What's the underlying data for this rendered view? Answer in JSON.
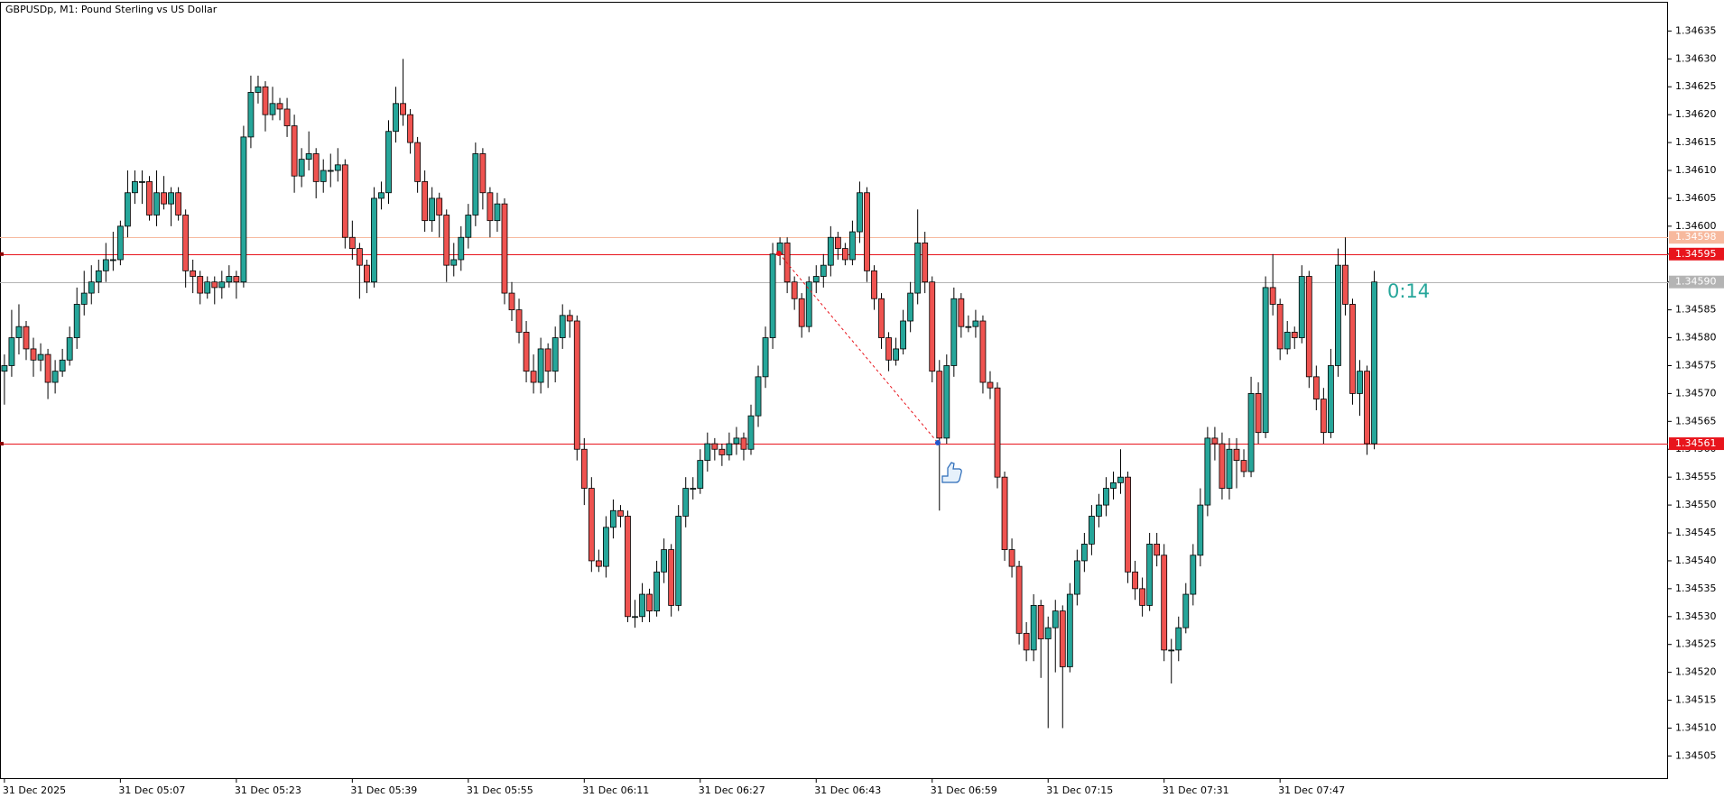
{
  "chart_data": {
    "type": "candlestick",
    "title": "GBPUSDp, M1:  Pound Sterling vs US Dollar",
    "countdown": "0:14",
    "up_color": "#26a69a",
    "down_color": "#ef5350",
    "categories": [
      "31 Dec 2025",
      null,
      null,
      null,
      null,
      null,
      null,
      null,
      null,
      null,
      null,
      null,
      null,
      null,
      null,
      null,
      "31 Dec 05:07",
      null,
      null,
      null,
      null,
      null,
      null,
      null,
      null,
      null,
      null,
      null,
      null,
      null,
      null,
      null,
      "31 Dec 05:23",
      null,
      null,
      null,
      null,
      null,
      null,
      null,
      null,
      null,
      null,
      null,
      null,
      null,
      null,
      null,
      "31 Dec 05:39",
      null,
      null,
      null,
      null,
      null,
      null,
      null,
      null,
      null,
      null,
      null,
      null,
      null,
      null,
      null,
      "31 Dec 05:55",
      null,
      null,
      null,
      null,
      null,
      null,
      null,
      null,
      null,
      null,
      null,
      null,
      null,
      null,
      null,
      "31 Dec 06:11",
      null,
      null,
      null,
      null,
      null,
      null,
      null,
      null,
      null,
      null,
      null,
      null,
      null,
      null,
      null,
      "31 Dec 06:27",
      null,
      null,
      null,
      null,
      null,
      null,
      null,
      null,
      null,
      null,
      null,
      null,
      null,
      null,
      null,
      "31 Dec 06:43",
      null,
      null,
      null,
      null,
      null,
      null,
      null,
      null,
      null,
      null,
      null,
      null,
      null,
      null,
      null,
      "31 Dec 06:59",
      null,
      null,
      null,
      null,
      null,
      null,
      null,
      null,
      null,
      null,
      null,
      null,
      null,
      null,
      null,
      "31 Dec 07:15",
      null,
      null,
      null,
      null,
      null,
      null,
      null,
      null,
      null,
      null,
      null,
      null,
      null,
      null,
      null,
      "31 Dec 07:31",
      null,
      null,
      null,
      null,
      null,
      null,
      null,
      null,
      null,
      null,
      null,
      null,
      null,
      null,
      null,
      "31 Dec 07:47",
      null,
      null,
      null,
      null,
      null,
      null,
      null,
      null,
      null,
      null,
      null,
      null,
      null
    ],
    "candles": [
      [
        1.34574,
        1.34577,
        1.34568,
        1.34575
      ],
      [
        1.34575,
        1.34585,
        1.34573,
        1.3458
      ],
      [
        1.3458,
        1.34586,
        1.34577,
        1.34582
      ],
      [
        1.34582,
        1.34583,
        1.34576,
        1.34578
      ],
      [
        1.34578,
        1.3458,
        1.34573,
        1.34576
      ],
      [
        1.34576,
        1.34579,
        1.34574,
        1.34577
      ],
      [
        1.34577,
        1.34578,
        1.34569,
        1.34572
      ],
      [
        1.34572,
        1.34576,
        1.3457,
        1.34574
      ],
      [
        1.34574,
        1.34578,
        1.34573,
        1.34576
      ],
      [
        1.34576,
        1.34582,
        1.34575,
        1.3458
      ],
      [
        1.3458,
        1.34589,
        1.34578,
        1.34586
      ],
      [
        1.34586,
        1.34592,
        1.34584,
        1.34588
      ],
      [
        1.34588,
        1.34593,
        1.34586,
        1.3459
      ],
      [
        1.3459,
        1.34594,
        1.34588,
        1.34592
      ],
      [
        1.34592,
        1.34597,
        1.3459,
        1.34594
      ],
      [
        1.34594,
        1.34599,
        1.34592,
        1.34594
      ],
      [
        1.34594,
        1.34601,
        1.34593,
        1.346
      ],
      [
        1.346,
        1.3461,
        1.34598,
        1.34606
      ],
      [
        1.34606,
        1.3461,
        1.34604,
        1.34608
      ],
      [
        1.34608,
        1.3461,
        1.34604,
        1.34608
      ],
      [
        1.34608,
        1.34609,
        1.34601,
        1.34602
      ],
      [
        1.34602,
        1.3461,
        1.346,
        1.34606
      ],
      [
        1.34606,
        1.34609,
        1.34603,
        1.34604
      ],
      [
        1.34604,
        1.34607,
        1.346,
        1.34606
      ],
      [
        1.34606,
        1.34607,
        1.34601,
        1.34602
      ],
      [
        1.34602,
        1.34603,
        1.34589,
        1.34592
      ],
      [
        1.34592,
        1.34594,
        1.34588,
        1.34591
      ],
      [
        1.34591,
        1.34592,
        1.34586,
        1.34588
      ],
      [
        1.34588,
        1.34591,
        1.34587,
        1.3459
      ],
      [
        1.3459,
        1.34591,
        1.34586,
        1.34589
      ],
      [
        1.34589,
        1.34592,
        1.34587,
        1.3459
      ],
      [
        1.3459,
        1.34593,
        1.34589,
        1.34591
      ],
      [
        1.34591,
        1.34592,
        1.34587,
        1.3459
      ],
      [
        1.3459,
        1.34618,
        1.34589,
        1.34616
      ],
      [
        1.34616,
        1.34627,
        1.34614,
        1.34624
      ],
      [
        1.34624,
        1.34627,
        1.34622,
        1.34625
      ],
      [
        1.34625,
        1.34626,
        1.34617,
        1.3462
      ],
      [
        1.3462,
        1.34625,
        1.34619,
        1.34622
      ],
      [
        1.34622,
        1.34623,
        1.34619,
        1.34621
      ],
      [
        1.34621,
        1.34623,
        1.34616,
        1.34618
      ],
      [
        1.34618,
        1.3462,
        1.34606,
        1.34609
      ],
      [
        1.34609,
        1.34614,
        1.34607,
        1.34612
      ],
      [
        1.34612,
        1.34617,
        1.3461,
        1.34613
      ],
      [
        1.34613,
        1.34614,
        1.34605,
        1.34608
      ],
      [
        1.34608,
        1.34612,
        1.34606,
        1.3461
      ],
      [
        1.3461,
        1.34613,
        1.34607,
        1.3461
      ],
      [
        1.3461,
        1.34614,
        1.34608,
        1.34611
      ],
      [
        1.34611,
        1.34612,
        1.34596,
        1.34598
      ],
      [
        1.34598,
        1.34601,
        1.34594,
        1.34596
      ],
      [
        1.34596,
        1.34597,
        1.34587,
        1.34593
      ],
      [
        1.34593,
        1.34594,
        1.34588,
        1.3459
      ],
      [
        1.3459,
        1.34607,
        1.34589,
        1.34605
      ],
      [
        1.34605,
        1.34608,
        1.34603,
        1.34606
      ],
      [
        1.34606,
        1.34619,
        1.34604,
        1.34617
      ],
      [
        1.34617,
        1.34625,
        1.34615,
        1.34622
      ],
      [
        1.34622,
        1.3463,
        1.34618,
        1.3462
      ],
      [
        1.3462,
        1.34621,
        1.34613,
        1.34615
      ],
      [
        1.34615,
        1.34616,
        1.34606,
        1.34608
      ],
      [
        1.34608,
        1.3461,
        1.34599,
        1.34601
      ],
      [
        1.34601,
        1.34607,
        1.34599,
        1.34605
      ],
      [
        1.34605,
        1.34606,
        1.34598,
        1.34602
      ],
      [
        1.34602,
        1.34603,
        1.3459,
        1.34593
      ],
      [
        1.34593,
        1.34597,
        1.34591,
        1.34594
      ],
      [
        1.34594,
        1.346,
        1.34592,
        1.34598
      ],
      [
        1.34598,
        1.34604,
        1.34596,
        1.34602
      ],
      [
        1.34602,
        1.34615,
        1.346,
        1.34613
      ],
      [
        1.34613,
        1.34614,
        1.34603,
        1.34606
      ],
      [
        1.34606,
        1.34607,
        1.34598,
        1.34601
      ],
      [
        1.34601,
        1.34606,
        1.34599,
        1.34604
      ],
      [
        1.34604,
        1.34605,
        1.34586,
        1.34588
      ],
      [
        1.34588,
        1.3459,
        1.34583,
        1.34585
      ],
      [
        1.34585,
        1.34587,
        1.34579,
        1.34581
      ],
      [
        1.34581,
        1.34583,
        1.34572,
        1.34574
      ],
      [
        1.34574,
        1.34577,
        1.3457,
        1.34572
      ],
      [
        1.34572,
        1.3458,
        1.3457,
        1.34578
      ],
      [
        1.34578,
        1.34579,
        1.34571,
        1.34574
      ],
      [
        1.34574,
        1.34582,
        1.34572,
        1.3458
      ],
      [
        1.3458,
        1.34586,
        1.34578,
        1.34584
      ],
      [
        1.34584,
        1.34585,
        1.3458,
        1.34583
      ],
      [
        1.34583,
        1.34584,
        1.34558,
        1.3456
      ],
      [
        1.3456,
        1.34562,
        1.3455,
        1.34553
      ],
      [
        1.34553,
        1.34555,
        1.34538,
        1.3454
      ],
      [
        1.3454,
        1.34542,
        1.34538,
        1.34539
      ],
      [
        1.34539,
        1.34548,
        1.34537,
        1.34546
      ],
      [
        1.34546,
        1.34551,
        1.34544,
        1.34549
      ],
      [
        1.34549,
        1.3455,
        1.34546,
        1.34548
      ],
      [
        1.34548,
        1.34549,
        1.34529,
        1.3453
      ],
      [
        1.3453,
        1.34533,
        1.34528,
        1.3453
      ],
      [
        1.3453,
        1.34536,
        1.34529,
        1.34534
      ],
      [
        1.34534,
        1.34535,
        1.34529,
        1.34531
      ],
      [
        1.34531,
        1.3454,
        1.3453,
        1.34538
      ],
      [
        1.34538,
        1.34544,
        1.34536,
        1.34542
      ],
      [
        1.34542,
        1.34543,
        1.3453,
        1.34532
      ],
      [
        1.34532,
        1.3455,
        1.34531,
        1.34548
      ],
      [
        1.34548,
        1.34555,
        1.34546,
        1.34553
      ],
      [
        1.34553,
        1.34555,
        1.34551,
        1.34553
      ],
      [
        1.34553,
        1.3456,
        1.34552,
        1.34558
      ],
      [
        1.34558,
        1.34563,
        1.34556,
        1.34561
      ],
      [
        1.34561,
        1.34562,
        1.34558,
        1.3456
      ],
      [
        1.3456,
        1.34561,
        1.34557,
        1.34559
      ],
      [
        1.34559,
        1.34563,
        1.34558,
        1.34561
      ],
      [
        1.34561,
        1.34564,
        1.34559,
        1.34562
      ],
      [
        1.34562,
        1.34563,
        1.34558,
        1.3456
      ],
      [
        1.3456,
        1.34568,
        1.34559,
        1.34566
      ],
      [
        1.34566,
        1.34575,
        1.34564,
        1.34573
      ],
      [
        1.34573,
        1.34582,
        1.34571,
        1.3458
      ],
      [
        1.3458,
        1.34597,
        1.34578,
        1.34595
      ],
      [
        1.34595,
        1.34598,
        1.34593,
        1.34597
      ],
      [
        1.34597,
        1.34598,
        1.34588,
        1.3459
      ],
      [
        1.3459,
        1.34591,
        1.34585,
        1.34587
      ],
      [
        1.34587,
        1.34588,
        1.3458,
        1.34582
      ],
      [
        1.34582,
        1.34591,
        1.34581,
        1.3459
      ],
      [
        1.3459,
        1.34593,
        1.34588,
        1.34591
      ],
      [
        1.34591,
        1.34595,
        1.34589,
        1.34593
      ],
      [
        1.34593,
        1.346,
        1.34591,
        1.34598
      ],
      [
        1.34598,
        1.34599,
        1.34594,
        1.34596
      ],
      [
        1.34596,
        1.34597,
        1.34593,
        1.34594
      ],
      [
        1.34594,
        1.34601,
        1.34593,
        1.34599
      ],
      [
        1.34599,
        1.34608,
        1.34597,
        1.34606
      ],
      [
        1.34606,
        1.34607,
        1.3459,
        1.34592
      ],
      [
        1.34592,
        1.34593,
        1.34585,
        1.34587
      ],
      [
        1.34587,
        1.34588,
        1.34578,
        1.3458
      ],
      [
        1.3458,
        1.34581,
        1.34574,
        1.34576
      ],
      [
        1.34576,
        1.3458,
        1.34575,
        1.34578
      ],
      [
        1.34578,
        1.34585,
        1.34577,
        1.34583
      ],
      [
        1.34583,
        1.3459,
        1.34581,
        1.34588
      ],
      [
        1.34588,
        1.34603,
        1.34586,
        1.34597
      ],
      [
        1.34597,
        1.34599,
        1.34588,
        1.3459
      ],
      [
        1.3459,
        1.34591,
        1.34572,
        1.34574
      ],
      [
        1.34574,
        1.34576,
        1.34549,
        1.34562
      ],
      [
        1.34562,
        1.34577,
        1.34561,
        1.34575
      ],
      [
        1.34575,
        1.34589,
        1.34573,
        1.34587
      ],
      [
        1.34587,
        1.34588,
        1.3458,
        1.34582
      ],
      [
        1.34582,
        1.34584,
        1.34581,
        1.34582
      ],
      [
        1.34582,
        1.34585,
        1.3458,
        1.34583
      ],
      [
        1.34583,
        1.34584,
        1.3457,
        1.34572
      ],
      [
        1.34572,
        1.34574,
        1.34569,
        1.34571
      ],
      [
        1.34571,
        1.34572,
        1.34553,
        1.34555
      ],
      [
        1.34555,
        1.34556,
        1.3454,
        1.34542
      ],
      [
        1.34542,
        1.34544,
        1.34537,
        1.34539
      ],
      [
        1.34539,
        1.3454,
        1.34525,
        1.34527
      ],
      [
        1.34527,
        1.34529,
        1.34522,
        1.34524
      ],
      [
        1.34524,
        1.34534,
        1.34522,
        1.34532
      ],
      [
        1.34532,
        1.34533,
        1.34519,
        1.34526
      ],
      [
        1.34526,
        1.3453,
        1.3451,
        1.34528
      ],
      [
        1.34528,
        1.34533,
        1.3452,
        1.34531
      ],
      [
        1.34531,
        1.34532,
        1.3451,
        1.34521
      ],
      [
        1.34521,
        1.34536,
        1.3452,
        1.34534
      ],
      [
        1.34534,
        1.34542,
        1.34532,
        1.3454
      ],
      [
        1.3454,
        1.34545,
        1.34538,
        1.34543
      ],
      [
        1.34543,
        1.3455,
        1.34541,
        1.34548
      ],
      [
        1.34548,
        1.34552,
        1.34546,
        1.3455
      ],
      [
        1.3455,
        1.34555,
        1.34548,
        1.34553
      ],
      [
        1.34553,
        1.34556,
        1.34551,
        1.34554
      ],
      [
        1.34554,
        1.3456,
        1.34552,
        1.34555
      ],
      [
        1.34555,
        1.34556,
        1.34536,
        1.34538
      ],
      [
        1.34538,
        1.3454,
        1.34533,
        1.34535
      ],
      [
        1.34535,
        1.34537,
        1.3453,
        1.34532
      ],
      [
        1.34532,
        1.34545,
        1.34531,
        1.34543
      ],
      [
        1.34543,
        1.34545,
        1.34539,
        1.34541
      ],
      [
        1.34541,
        1.34543,
        1.34522,
        1.34524
      ],
      [
        1.34524,
        1.34526,
        1.34518,
        1.34524
      ],
      [
        1.34524,
        1.3453,
        1.34522,
        1.34528
      ],
      [
        1.34528,
        1.34536,
        1.34527,
        1.34534
      ],
      [
        1.34534,
        1.34543,
        1.34532,
        1.34541
      ],
      [
        1.34541,
        1.34553,
        1.34539,
        1.3455
      ],
      [
        1.3455,
        1.34564,
        1.34548,
        1.34562
      ],
      [
        1.34562,
        1.34564,
        1.34558,
        1.34561
      ],
      [
        1.34561,
        1.34563,
        1.34551,
        1.34553
      ],
      [
        1.34553,
        1.34562,
        1.34551,
        1.3456
      ],
      [
        1.3456,
        1.34562,
        1.34553,
        1.34558
      ],
      [
        1.34558,
        1.3456,
        1.34555,
        1.34556
      ],
      [
        1.34556,
        1.34573,
        1.34555,
        1.3457
      ],
      [
        1.3457,
        1.34572,
        1.34561,
        1.34563
      ],
      [
        1.34563,
        1.34591,
        1.34562,
        1.34589
      ],
      [
        1.34589,
        1.34595,
        1.34584,
        1.34586
      ],
      [
        1.34586,
        1.34587,
        1.34576,
        1.34578
      ],
      [
        1.34578,
        1.34583,
        1.34577,
        1.34581
      ],
      [
        1.34581,
        1.34582,
        1.34578,
        1.3458
      ],
      [
        1.3458,
        1.34593,
        1.34579,
        1.34591
      ],
      [
        1.34591,
        1.34592,
        1.34571,
        1.34573
      ],
      [
        1.34573,
        1.34575,
        1.34567,
        1.34569
      ],
      [
        1.34569,
        1.34571,
        1.34561,
        1.34563
      ],
      [
        1.34563,
        1.34578,
        1.34562,
        1.34575
      ],
      [
        1.34575,
        1.34596,
        1.34573,
        1.34593
      ],
      [
        1.34593,
        1.34598,
        1.34584,
        1.34586
      ],
      [
        1.34586,
        1.34587,
        1.34568,
        1.3457
      ],
      [
        1.3457,
        1.34576,
        1.34566,
        1.34574
      ],
      [
        1.34574,
        1.34575,
        1.34559,
        1.34561
      ],
      [
        1.34561,
        1.34592,
        1.3456,
        1.3459
      ]
    ],
    "ylim": [
      1.34635,
      1.34505
    ],
    "yticks": [
      1.34635,
      {
        "value": 1.3463,
        "label": "1.34630"
      },
      1.34625,
      {
        "value": 1.3462,
        "label": "1.34620"
      },
      1.34615,
      {
        "value": 1.3461,
        "label": "1.34610"
      },
      1.34605,
      {
        "value": 1.346,
        "label": "1.34600"
      },
      1.34595,
      {
        "value": 1.3459,
        "label": "1.34590"
      },
      1.34585,
      {
        "value": 1.3458,
        "label": "1.34580"
      },
      1.34575,
      {
        "value": 1.3457,
        "label": "1.34570"
      },
      1.34565,
      {
        "value": 1.3456,
        "label": "1.34560"
      },
      1.34555,
      {
        "value": 1.3455,
        "label": "1.34550"
      },
      1.34545,
      {
        "value": 1.3454,
        "label": "1.34540"
      },
      1.34535,
      {
        "value": 1.3453,
        "label": "1.34530"
      },
      1.34525,
      {
        "value": 1.3452,
        "label": "1.34520"
      },
      1.34515,
      {
        "value": 1.3451,
        "label": "1.34510"
      },
      1.34505
    ],
    "levels": [
      {
        "value": 1.34598,
        "color": "#f7b99e"
      },
      {
        "value": 1.34595,
        "color": "#e8141c"
      },
      {
        "value": 1.3459,
        "label": "1.34590",
        "color": "#b4b4b4"
      },
      {
        "value": 1.34561,
        "color": "#e8141c"
      }
    ]
  }
}
